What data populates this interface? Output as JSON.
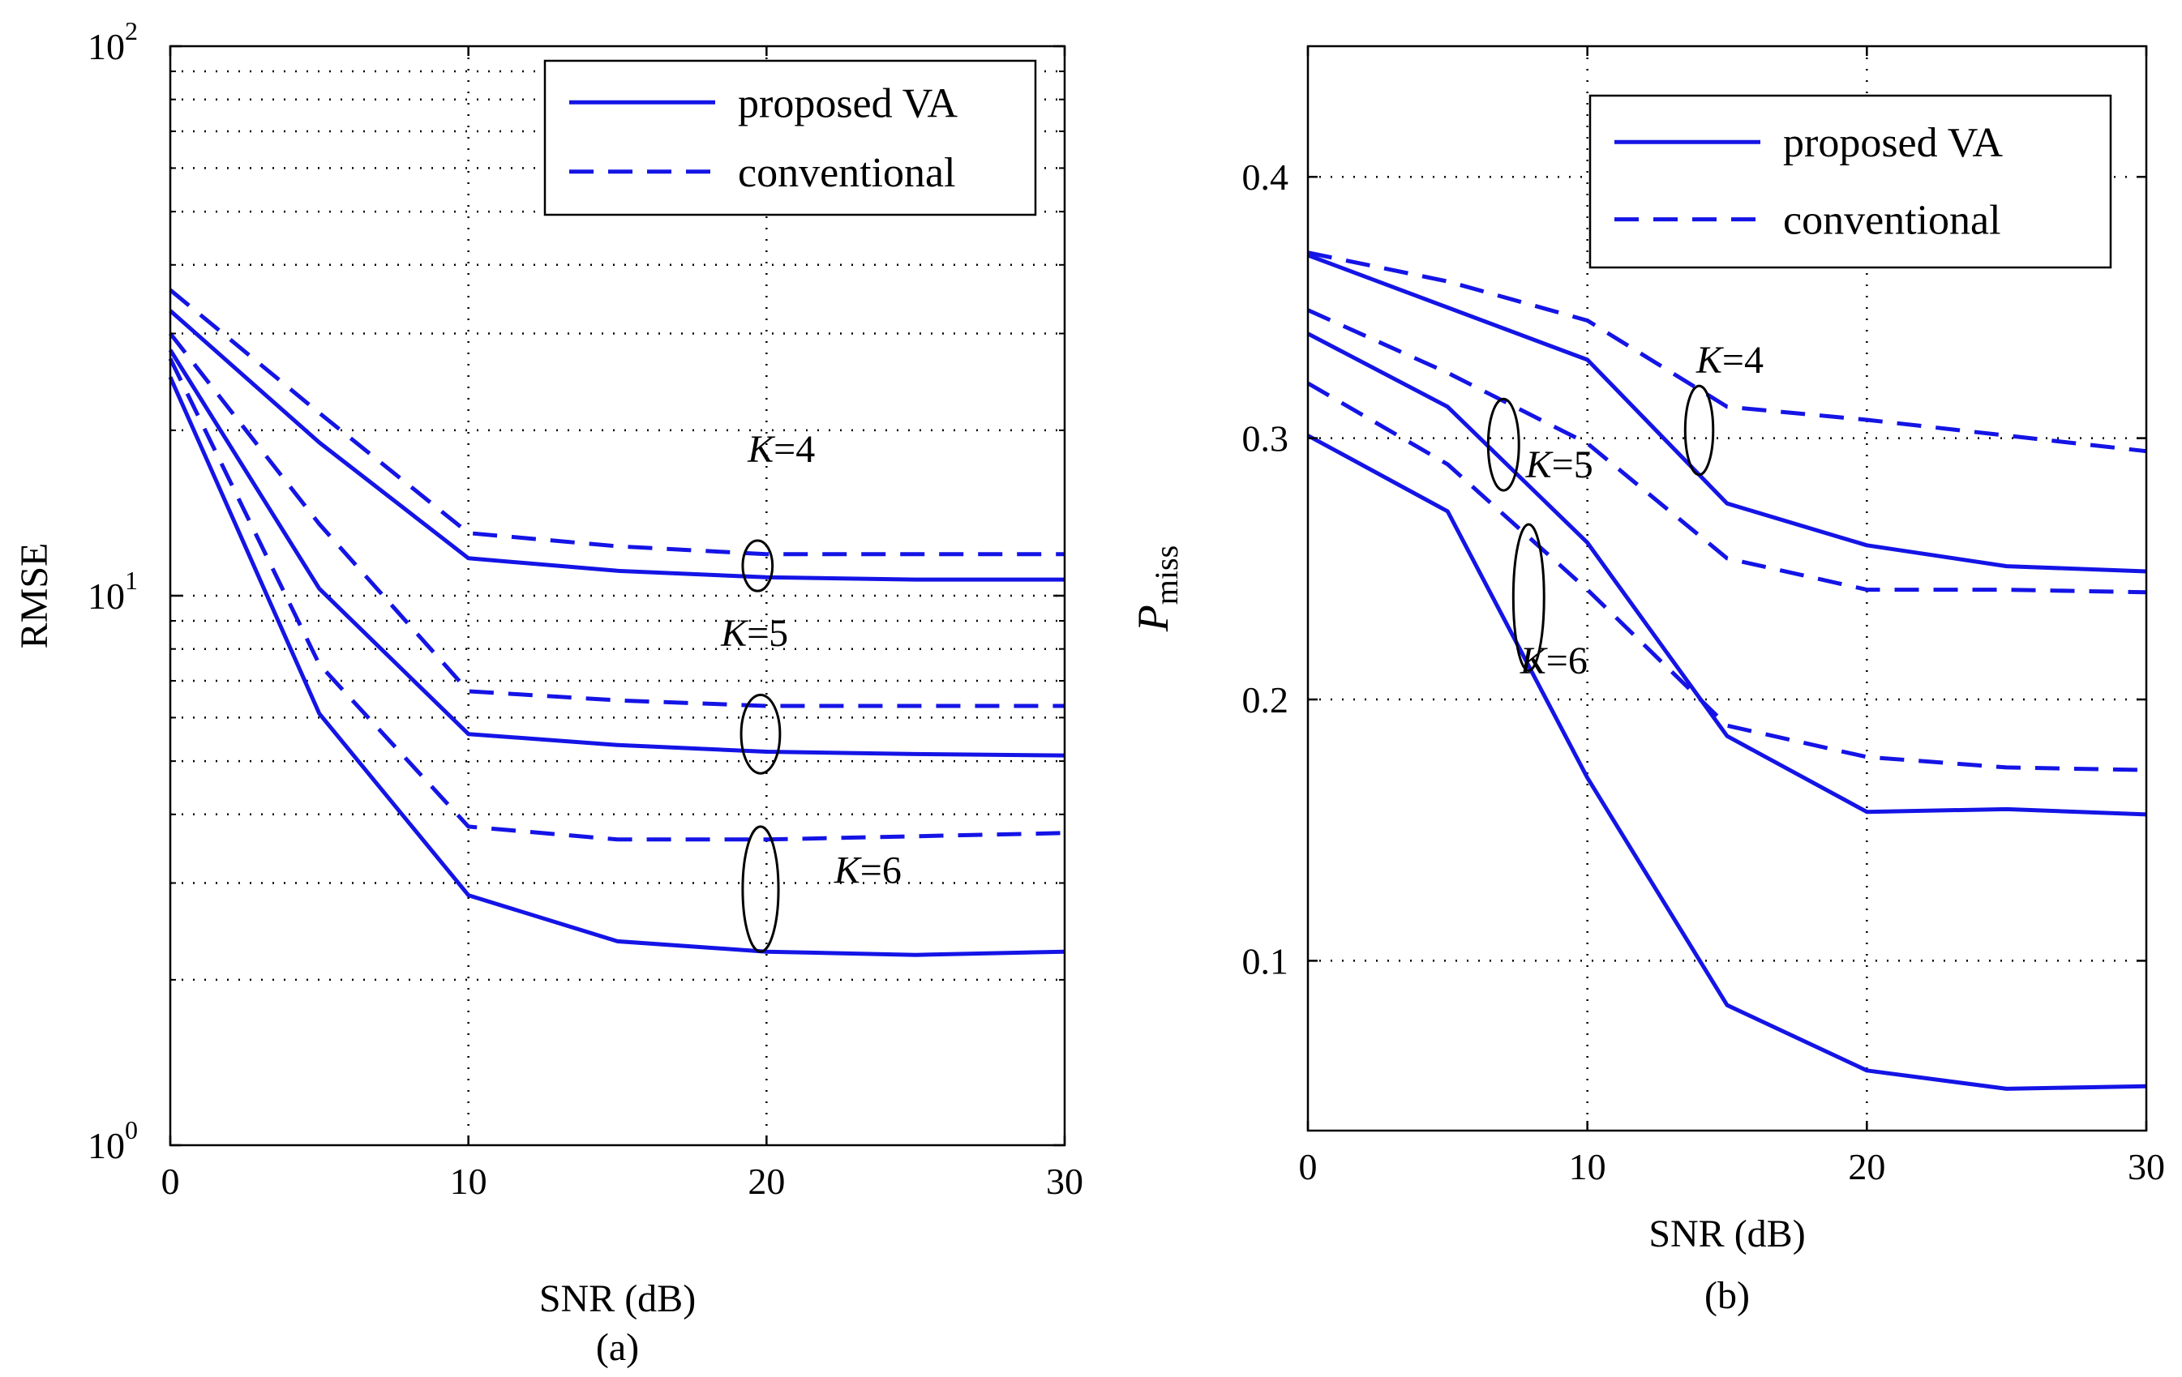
{
  "figure": {
    "caption_a": "(a)",
    "caption_b": "(b)"
  },
  "colors": {
    "line": "#1414e6",
    "grid": "#000000",
    "ellipse": "#000000"
  },
  "chart_data": [
    {
      "id": "a",
      "type": "line",
      "yscale": "log",
      "xlabel": "SNR (dB)",
      "ylabel": "RMSE",
      "xlim": [
        0,
        30
      ],
      "ylim": [
        1,
        100
      ],
      "xticks": [
        0,
        10,
        20,
        30
      ],
      "xtick_labels": [
        "0",
        "10",
        "20",
        "30"
      ],
      "yticks": [
        {
          "value": 1,
          "base": "10",
          "exp": "0"
        },
        {
          "value": 10,
          "base": "10",
          "exp": "1"
        },
        {
          "value": 100,
          "base": "10",
          "exp": "2"
        }
      ],
      "grid": true,
      "legend": {
        "position": "top-right",
        "entries": [
          {
            "label": "proposed VA",
            "style": "solid"
          },
          {
            "label": "conventional",
            "style": "dashed"
          }
        ]
      },
      "x": [
        0,
        5,
        10,
        15,
        20,
        25,
        30
      ],
      "series": [
        {
          "name": "proposed VA, K=4",
          "style": "solid",
          "values": [
            33,
            19,
            11.7,
            11.1,
            10.8,
            10.7,
            10.7
          ]
        },
        {
          "name": "conventional, K=4",
          "style": "dashed",
          "values": [
            36,
            21.5,
            13,
            12.3,
            11.9,
            11.9,
            11.9
          ]
        },
        {
          "name": "proposed VA, K=5",
          "style": "solid",
          "values": [
            28,
            10.3,
            5.6,
            5.35,
            5.2,
            5.15,
            5.12
          ]
        },
        {
          "name": "conventional, K=5",
          "style": "dashed",
          "values": [
            30,
            13.5,
            6.7,
            6.45,
            6.3,
            6.3,
            6.3
          ]
        },
        {
          "name": "proposed VA, K=6",
          "style": "solid",
          "values": [
            25,
            6.1,
            2.85,
            2.35,
            2.25,
            2.22,
            2.25
          ]
        },
        {
          "name": "conventional, K=6",
          "style": "dashed",
          "values": [
            27,
            7.5,
            3.8,
            3.6,
            3.6,
            3.65,
            3.7
          ]
        }
      ],
      "annotations": [
        {
          "label": "K",
          "value": "=4",
          "x": 20.5,
          "y": 17.5,
          "ellipse_x": 19.7,
          "ellipse_y": 11.3,
          "rx": 0.5,
          "y_top": 12.6,
          "y_bot": 10.2
        },
        {
          "label": "K",
          "value": "=5",
          "x": 19.6,
          "y": 8.1,
          "ellipse_x": 19.8,
          "ellipse_y": 5.6,
          "rx": 0.65,
          "y_top": 6.6,
          "y_bot": 4.75
        },
        {
          "label": "K",
          "value": "=6",
          "x": 23.4,
          "y": 3.0,
          "ellipse_x": 19.8,
          "ellipse_y": 2.95,
          "rx": 0.6,
          "y_top": 3.8,
          "y_bot": 2.25
        }
      ]
    },
    {
      "id": "b",
      "type": "line",
      "yscale": "linear",
      "xlabel": "SNR (dB)",
      "ylabel": "P",
      "ylabel_sub": "miss",
      "xlim": [
        0,
        30
      ],
      "ylim": [
        0.035,
        0.45
      ],
      "xticks": [
        0,
        10,
        20,
        30
      ],
      "xtick_labels": [
        "0",
        "10",
        "20",
        "30"
      ],
      "yticks": [
        0.1,
        0.2,
        0.3,
        0.4
      ],
      "ytick_labels": [
        "0.1",
        "0.2",
        "0.3",
        "0.4"
      ],
      "grid": true,
      "legend": {
        "position": "top-right",
        "entries": [
          {
            "label": "proposed VA",
            "style": "solid"
          },
          {
            "label": "conventional",
            "style": "dashed"
          }
        ]
      },
      "x": [
        0,
        5,
        10,
        15,
        20,
        25,
        30
      ],
      "series": [
        {
          "name": "proposed VA, K=4",
          "style": "solid",
          "values": [
            0.37,
            0.35,
            0.33,
            0.275,
            0.259,
            0.251,
            0.249
          ]
        },
        {
          "name": "conventional, K=4",
          "style": "dashed",
          "values": [
            0.371,
            0.36,
            0.345,
            0.312,
            0.307,
            0.301,
            0.295
          ]
        },
        {
          "name": "proposed VA, K=5",
          "style": "solid",
          "values": [
            0.34,
            0.312,
            0.26,
            0.186,
            0.157,
            0.158,
            0.156
          ]
        },
        {
          "name": "conventional, K=5",
          "style": "dashed",
          "values": [
            0.349,
            0.325,
            0.298,
            0.254,
            0.242,
            0.242,
            0.241
          ]
        },
        {
          "name": "proposed VA, K=6",
          "style": "solid",
          "values": [
            0.301,
            0.272,
            0.17,
            0.083,
            0.058,
            0.051,
            0.052
          ]
        },
        {
          "name": "conventional, K=6",
          "style": "dashed",
          "values": [
            0.321,
            0.29,
            0.242,
            0.19,
            0.178,
            0.174,
            0.173
          ]
        }
      ],
      "annotations": [
        {
          "label": "K",
          "value": "=4",
          "x": 15.1,
          "y": 0.325,
          "ellipse_x": 14.0,
          "ellipse_y": 0.302,
          "rx": 0.5,
          "y_top": 0.32,
          "y_bot": 0.286
        },
        {
          "label": "K",
          "value": "=5",
          "x": 9.0,
          "y": 0.285,
          "ellipse_x": 7.0,
          "ellipse_y": 0.297,
          "rx": 0.55,
          "y_top": 0.315,
          "y_bot": 0.28
        },
        {
          "label": "K",
          "value": "=6",
          "x": 8.8,
          "y": 0.21,
          "ellipse_x": 7.9,
          "ellipse_y": 0.239,
          "rx": 0.55,
          "y_top": 0.267,
          "y_bot": 0.211
        }
      ]
    }
  ]
}
